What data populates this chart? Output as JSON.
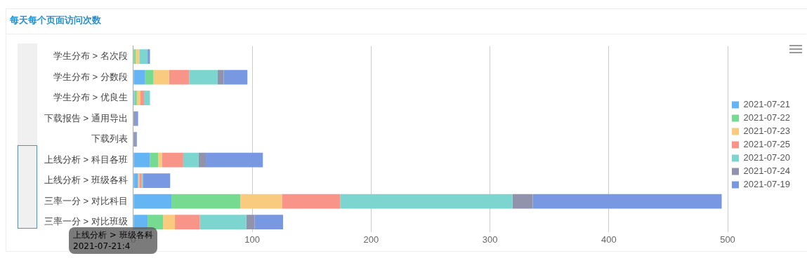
{
  "chart_data": {
    "type": "bar",
    "title": "每天每个页面访问次数",
    "orientation": "horizontal",
    "stacked": true,
    "categories": [
      "学生分布 > 名次段",
      "学生分布 > 分数段",
      "学生分布 > 优良生",
      "下载报告 > 通用导出",
      "下载列表",
      "上线分析 > 科目各班",
      "上线分析 > 班级各科",
      "三率一分 > 对比科目",
      "三率一分 > 对比班级"
    ],
    "series": [
      {
        "name": "2021-07-21",
        "color": "#65b5f4",
        "values": [
          0,
          10,
          1,
          0,
          0,
          14,
          4,
          32,
          12
        ]
      },
      {
        "name": "2021-07-22",
        "color": "#76da91",
        "values": [
          2,
          7,
          2,
          0,
          0,
          7,
          0,
          58,
          13
        ]
      },
      {
        "name": "2021-07-23",
        "color": "#f8cb7f",
        "values": [
          3,
          13,
          3,
          0,
          0,
          3,
          1,
          35,
          10
        ]
      },
      {
        "name": "2021-07-25",
        "color": "#f89588",
        "values": [
          0,
          17,
          3,
          0,
          0,
          18,
          2,
          49,
          21
        ]
      },
      {
        "name": "2021-07-20",
        "color": "#7cd6cf",
        "values": [
          7,
          24,
          5,
          0,
          0,
          13,
          1,
          145,
          39
        ]
      },
      {
        "name": "2021-07-24",
        "color": "#9192ab",
        "values": [
          0,
          5,
          0,
          2,
          2,
          6,
          0,
          17,
          7
        ]
      },
      {
        "name": "2021-07-19",
        "color": "#7898e1",
        "values": [
          2,
          20,
          0,
          2,
          1,
          48,
          23,
          159,
          24
        ]
      }
    ],
    "xlim": [
      0,
      500
    ],
    "xticks": [
      0,
      100,
      200,
      300,
      400,
      500
    ],
    "grid": "x",
    "legend": "right",
    "annotations": [
      "上线分析 > 班级各科\n2021-07-21:4"
    ]
  }
}
